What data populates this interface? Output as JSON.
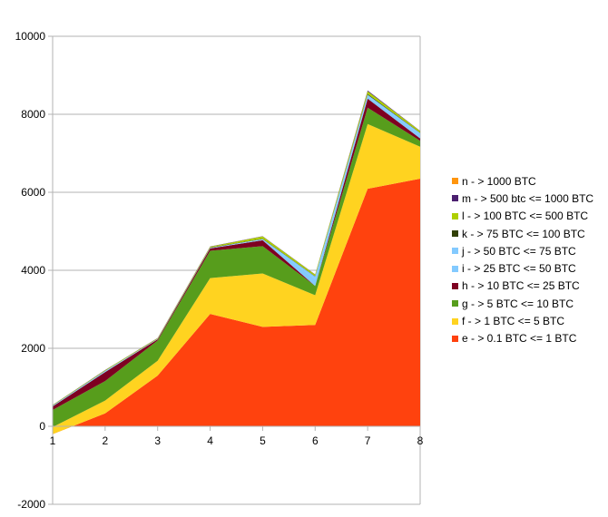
{
  "chart_data": {
    "type": "area",
    "stacked": true,
    "title": "",
    "xlabel": "",
    "ylabel": "",
    "x": [
      1,
      2,
      3,
      4,
      5,
      6,
      7,
      8
    ],
    "ylim": [
      -2000,
      10000
    ],
    "yticks": [
      -2000,
      0,
      2000,
      4000,
      6000,
      8000,
      10000
    ],
    "grid": "horizontal",
    "legend_position": "right",
    "series": [
      {
        "name": "e - > 0.1 BTC <= 1 BTC",
        "color": "#ff420e",
        "values": [
          -200,
          330,
          1300,
          2880,
          2550,
          2600,
          6090,
          6350
        ]
      },
      {
        "name": "f - > 1 BTC <= 5 BTC",
        "color": "#ffd320",
        "values": [
          180,
          330,
          380,
          920,
          1370,
          760,
          1660,
          820
        ]
      },
      {
        "name": "g - > 5 BTC <= 10 BTC",
        "color": "#579d1c",
        "values": [
          440,
          500,
          520,
          700,
          700,
          240,
          420,
          150
        ]
      },
      {
        "name": "h - > 10 BTC <= 25 BTC",
        "color": "#7e0021",
        "values": [
          90,
          230,
          30,
          60,
          150,
          0,
          230,
          60
        ]
      },
      {
        "name": "i - > 25 BTC <= 50 BTC",
        "color": "#83caff",
        "values": [
          15,
          20,
          5,
          10,
          20,
          180,
          60,
          110
        ]
      },
      {
        "name": "j - > 50 BTC <= 75 BTC",
        "color": "#83caff",
        "values": [
          5,
          10,
          5,
          5,
          10,
          60,
          40,
          30
        ]
      },
      {
        "name": "k - > 75 BTC <= 100 BTC",
        "color": "#314004",
        "values": [
          5,
          5,
          5,
          10,
          10,
          10,
          20,
          10
        ]
      },
      {
        "name": "l - > 100 BTC <= 500 BTC",
        "color": "#aecf00",
        "values": [
          10,
          15,
          15,
          20,
          60,
          40,
          70,
          40
        ]
      },
      {
        "name": "m - > 500 btc <= 1000 BTC",
        "color": "#4b1f6f",
        "values": [
          5,
          5,
          5,
          5,
          5,
          5,
          20,
          5
        ]
      },
      {
        "name": "n - > 1000 BTC",
        "color": "#ff950e",
        "values": [
          0,
          0,
          0,
          0,
          0,
          0,
          0,
          0
        ]
      }
    ]
  }
}
